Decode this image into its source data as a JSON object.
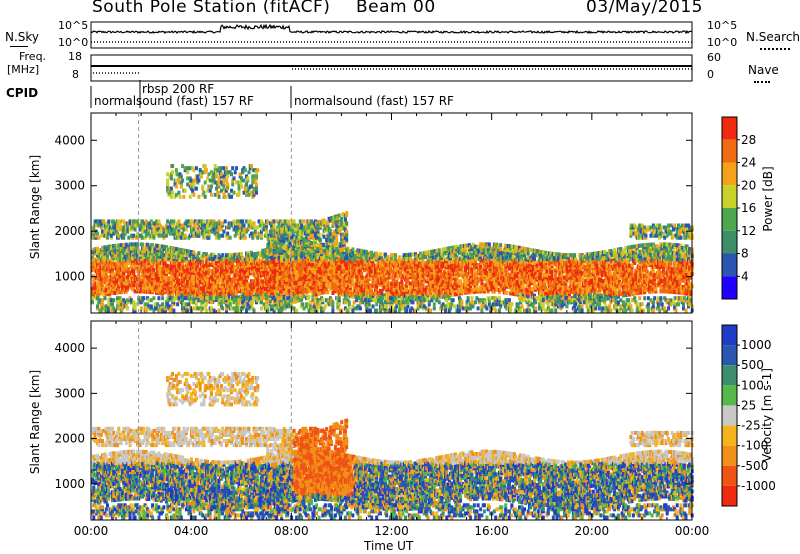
{
  "header": {
    "station": "South Pole Station (fitACF)",
    "beam": "Beam 00",
    "date": "03/May/2015"
  },
  "top_panels": {
    "nsky_label": "N.Sky",
    "nsearch_label": "N.Search",
    "nsky_ticks": [
      "10^5",
      "10^0"
    ],
    "nsearch_ticks": [
      "10^5",
      "10^0"
    ],
    "freq_label_1": "Freq.",
    "freq_label_2": "[MHz]",
    "freq_ticks": [
      "18",
      "8"
    ],
    "nave_label": "Nave",
    "nave_ticks": [
      "60",
      "0"
    ],
    "cpid_label": "CPID",
    "cpid_segments": [
      {
        "name": "normalsound (fast) 157 RF"
      },
      {
        "name": "rbsp 200 RF"
      },
      {
        "name": "normalsound (fast) 157 RF"
      }
    ]
  },
  "colors": {
    "power": [
      "#1f00ff",
      "#2a55b0",
      "#3e8e6a",
      "#4ea64e",
      "#c8d02a",
      "#f4a21a",
      "#f06a12",
      "#ee2a10"
    ],
    "velocity": [
      "#ee2a10",
      "#f05414",
      "#f0901a",
      "#f4b41e",
      "#c8c8c8",
      "#55b848",
      "#3c8e6e",
      "#2856b0",
      "#1f3cc8"
    ]
  },
  "chart_data": [
    {
      "type": "heatmap",
      "title": "Power",
      "xlabel": "Time UT",
      "ylabel": "Slant Range [km]",
      "x_ticks": [
        "00:00",
        "04:00",
        "08:00",
        "12:00",
        "16:00",
        "20:00",
        "00:00"
      ],
      "xlim_hours": [
        0,
        24
      ],
      "ylim": [
        200,
        4600
      ],
      "y_ticks": [
        1000,
        2000,
        3000,
        4000
      ],
      "colorbar": {
        "label": "Power [dB]",
        "range": [
          0,
          32
        ],
        "ticks": [
          4,
          8,
          12,
          16,
          20,
          24,
          28
        ]
      }
    },
    {
      "type": "heatmap",
      "title": "Velocity",
      "xlabel": "Time UT",
      "ylabel": "Slant Range [km]",
      "x_ticks": [
        "00:00",
        "04:00",
        "08:00",
        "12:00",
        "16:00",
        "20:00",
        "00:00"
      ],
      "xlim_hours": [
        0,
        24
      ],
      "ylim": [
        200,
        4600
      ],
      "y_ticks": [
        1000,
        2000,
        3000,
        4000
      ],
      "colorbar": {
        "label": "Velocity [m s-1]",
        "ticks": [
          "1000",
          "500",
          "100",
          "25",
          "-25",
          "-100",
          "-500",
          "-1000"
        ]
      }
    }
  ]
}
